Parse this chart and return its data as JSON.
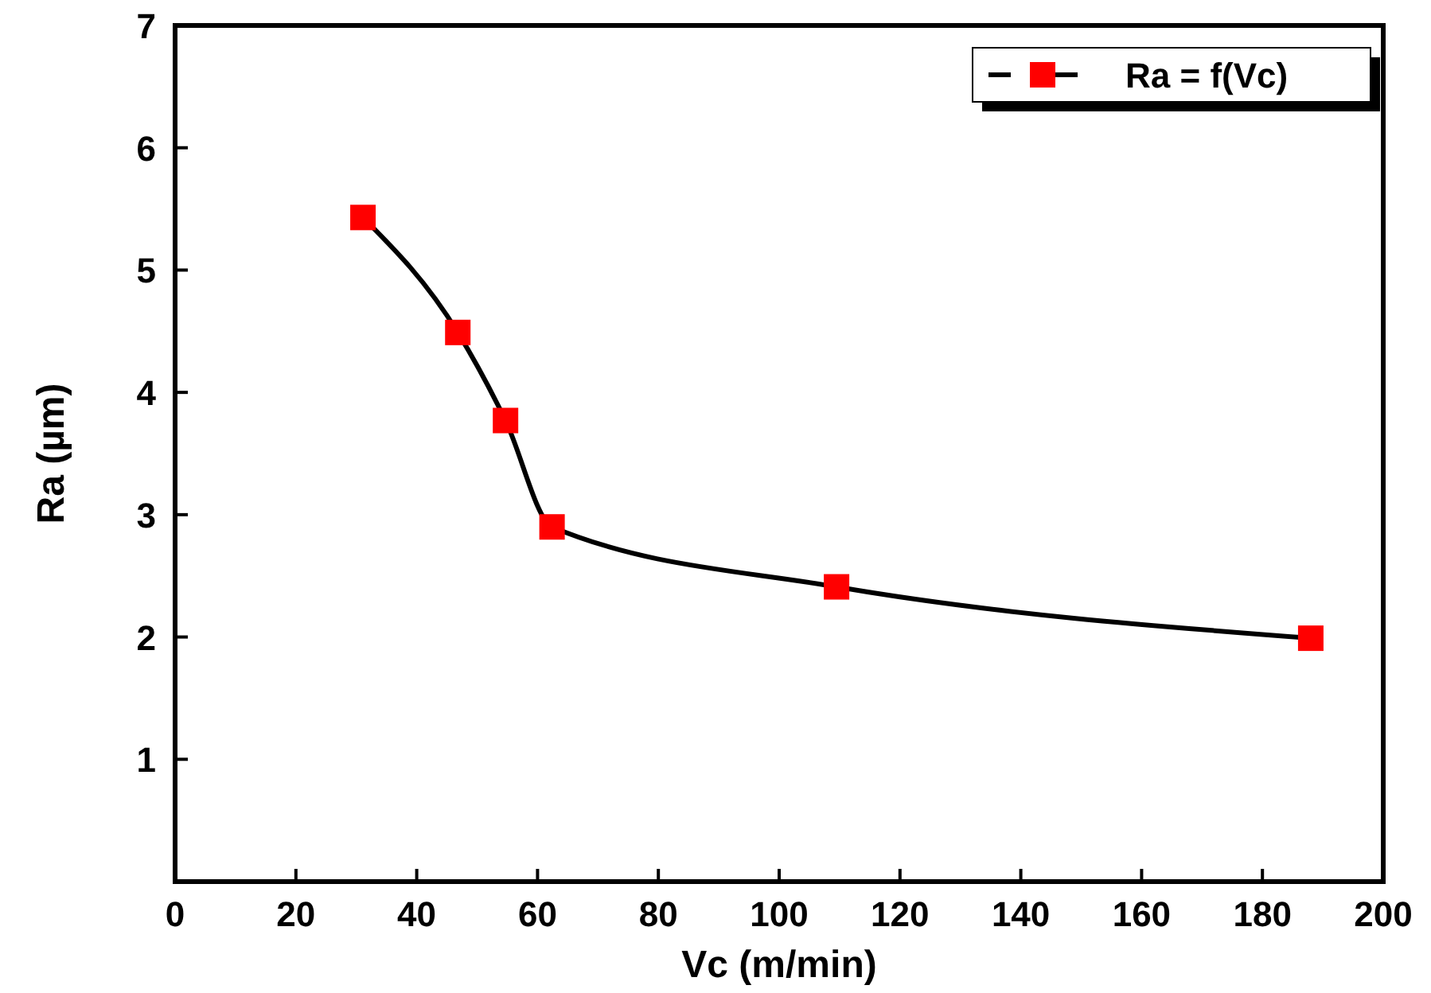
{
  "chart_data": {
    "type": "line",
    "xlabel": "Vc (m/min)",
    "ylabel": "Ra (µm)",
    "xlim": [
      0,
      200
    ],
    "xticks": [
      0,
      20,
      40,
      60,
      80,
      100,
      120,
      140,
      160,
      180,
      200
    ],
    "ylim": [
      0,
      7
    ],
    "yticks": [
      1,
      2,
      3,
      4,
      5,
      6,
      7
    ],
    "x": [
      31.1,
      46.8,
      54.7,
      62.4,
      109.5,
      188
    ],
    "series": [
      {
        "name": "Ra = f(Vc)",
        "color": "#ff0000",
        "values": [
          5.43,
          4.49,
          3.77,
          2.9,
          2.41,
          1.99
        ]
      }
    ],
    "marker": "square",
    "line_style": "solid",
    "grid": false,
    "legend": "top right"
  }
}
